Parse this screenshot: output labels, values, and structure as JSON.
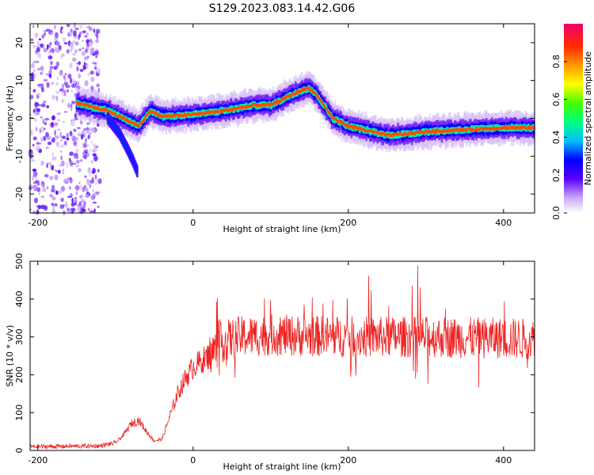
{
  "title": "S129.2023.083.14.42.G06",
  "chart_data": [
    {
      "type": "heatmap",
      "xlabel": "Height of straight line (km)",
      "ylabel": "Frequency (Hz)",
      "xlim": [
        -210,
        440
      ],
      "ylim": [
        -25,
        25
      ],
      "x_ticks": [
        -200,
        0,
        200,
        400
      ],
      "y_ticks": [
        -20,
        -10,
        0,
        10,
        20
      ],
      "colorbar": {
        "label": "Normalized spectral amplitude",
        "range": [
          0,
          1
        ],
        "ticks": [
          0.0,
          0.2,
          0.4,
          0.6,
          0.8
        ]
      },
      "ridge": {
        "x": [
          -150,
          -130,
          -110,
          -90,
          -70,
          -55,
          -40,
          0,
          40,
          80,
          100,
          120,
          140,
          150,
          160,
          180,
          200,
          220,
          250,
          280,
          300,
          350,
          400,
          440
        ],
        "y": [
          4,
          3,
          2,
          0,
          -2,
          2,
          0.5,
          1,
          2,
          3.5,
          3.5,
          5.5,
          7.5,
          8,
          6,
          0,
          -2,
          -3,
          -4.5,
          -4,
          -3.5,
          -3,
          -2.5,
          -2.5
        ]
      },
      "branch": {
        "x": [
          -110,
          -95,
          -85,
          -78,
          -72
        ],
        "y": [
          0,
          -4,
          -8,
          -11,
          -14
        ]
      }
    },
    {
      "type": "line",
      "xlabel": "Height of straight line (km)",
      "ylabel": "SNR (10 * v/v)",
      "xlim": [
        -210,
        440
      ],
      "ylim": [
        0,
        500
      ],
      "x_ticks": [
        -200,
        0,
        200,
        400
      ],
      "y_ticks": [
        0,
        100,
        200,
        300,
        400,
        500
      ],
      "series": [
        {
          "color": "#ee2222",
          "envelope": {
            "x": [
              -210,
              -120,
              -100,
              -90,
              -80,
              -70,
              -60,
              -50,
              -40,
              -30,
              -20,
              -10,
              0,
              20,
              40,
              60,
              100,
              200,
              300,
              440
            ],
            "y": [
              10,
              12,
              20,
              40,
              70,
              80,
              50,
              25,
              30,
              90,
              150,
              190,
              220,
              250,
              290,
              300,
              305,
              300,
              300,
              295
            ]
          }
        }
      ]
    }
  ]
}
